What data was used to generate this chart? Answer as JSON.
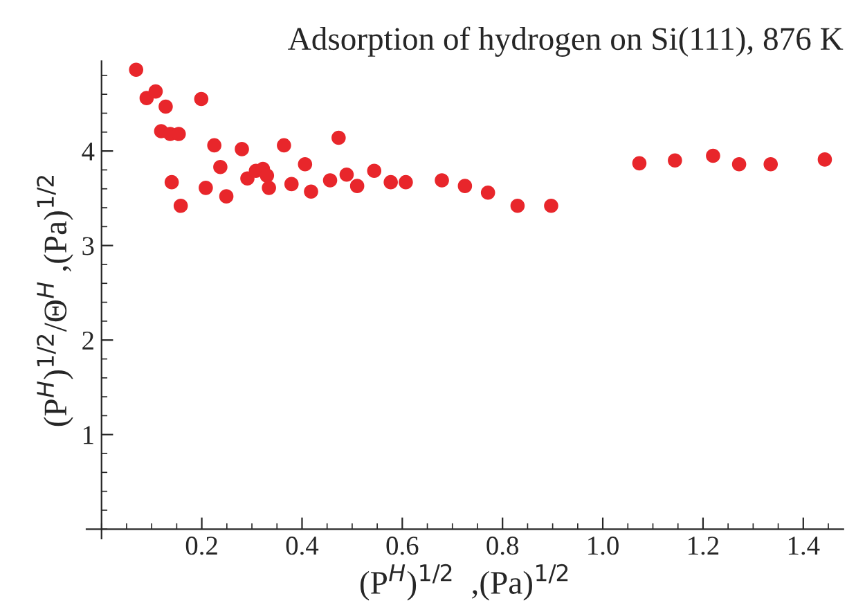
{
  "chart_data": {
    "type": "scatter",
    "title": "Adsorption of hydrogen on Si(111), 876 K",
    "xlabel": "(P$^{H}$)$^{1/2}$  ,(Pa)$^{1/2}$",
    "ylabel": "(P$^{H}$)$^{1/2}$/Θ$^{H}$ ,(Pa)$^{1/2}$",
    "marker": "circle",
    "grid": false,
    "xlim": [
      -0.03,
      1.48
    ],
    "ylim": [
      -0.1,
      4.95
    ],
    "xticks": [
      {
        "value": 0.2,
        "label": "0.2"
      },
      {
        "value": 0.4,
        "label": "0.4"
      },
      {
        "value": 0.6,
        "label": "0.6"
      },
      {
        "value": 0.8,
        "label": "0.8"
      },
      {
        "value": 1.0,
        "label": "1.0"
      },
      {
        "value": 1.2,
        "label": "1.2"
      },
      {
        "value": 1.4,
        "label": "1.4"
      }
    ],
    "yticks": [
      1,
      2,
      3,
      4
    ],
    "series": [
      {
        "color": "#e8262b",
        "x": [
          0.069,
          0.09,
          0.108,
          0.128,
          0.199,
          0.119,
          0.137,
          0.154,
          0.14,
          0.158,
          0.225,
          0.208,
          0.237,
          0.249,
          0.28,
          0.291,
          0.308,
          0.322,
          0.33,
          0.334,
          0.364,
          0.379,
          0.406,
          0.418,
          0.456,
          0.473,
          0.489,
          0.51,
          0.544,
          0.577,
          0.607,
          0.679,
          0.725,
          0.771,
          0.83,
          0.897,
          1.073,
          1.144,
          1.22,
          1.272,
          1.335,
          1.443
        ],
        "values": [
          4.86,
          4.56,
          4.63,
          4.47,
          4.55,
          4.21,
          4.18,
          4.18,
          3.67,
          3.42,
          4.06,
          3.61,
          3.83,
          3.52,
          4.02,
          3.71,
          3.79,
          3.81,
          3.74,
          3.61,
          4.06,
          3.65,
          3.86,
          3.57,
          3.69,
          4.14,
          3.75,
          3.63,
          3.79,
          3.67,
          3.67,
          3.69,
          3.63,
          3.56,
          3.42,
          3.42,
          3.87,
          3.9,
          3.95,
          3.86,
          3.86,
          3.91
        ]
      }
    ]
  }
}
